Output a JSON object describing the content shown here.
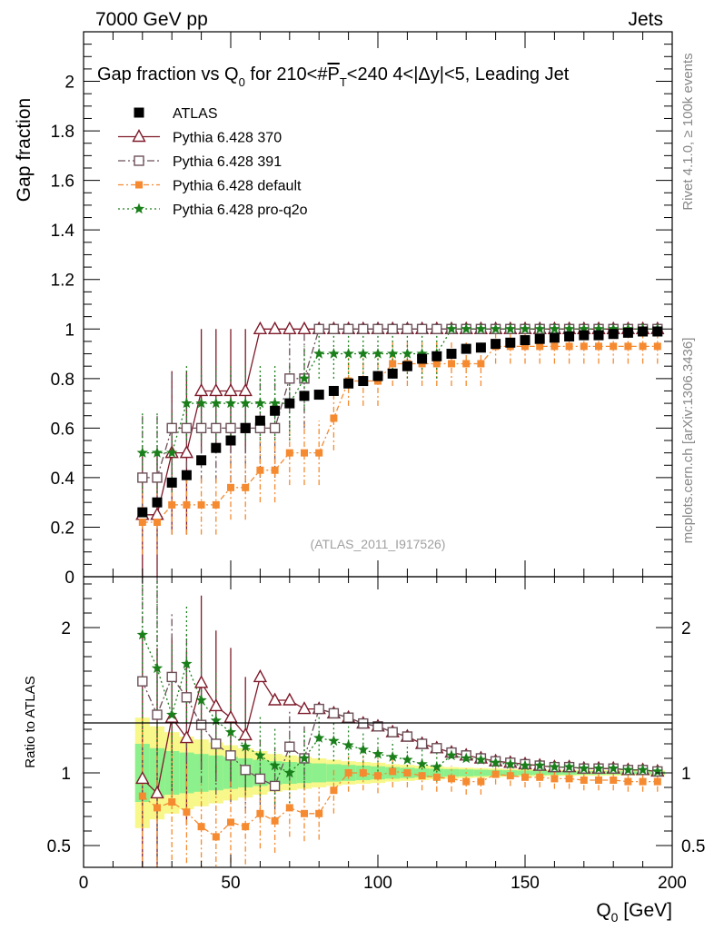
{
  "header": {
    "left": "7000 GeV pp",
    "right": "Jets"
  },
  "side_text": {
    "rivet": "Rivet 4.1.0, ≥ 100k events",
    "mcplots": "mcplots.cern.ch [arXiv:1306.3436]"
  },
  "watermark": "(ATLAS_2011_I917526)",
  "colors": {
    "atlas": "#000000",
    "p370": "#7f1a2a",
    "p391": "#6b5058",
    "pdefault": "#f58a30",
    "pq2o": "#1a7f1a",
    "band_inner": "#8cf08c",
    "band_outer": "#f7f78a"
  },
  "chart_data": {
    "type": "scatter",
    "title": "Gap fraction vs Q₀ for 210<#P̅T<240  4<|Δy|<5, Leading Jet",
    "title_parts": {
      "pre": "Gap fraction vs Q",
      "q_sub": "0",
      "mid": " for 210<#",
      "p": "P",
      "p_sub": "T",
      "post": "<240  4<|Δy|<5, Leading Jet"
    },
    "xlabel": "Q₀ [GeV]",
    "xlabel_parts": {
      "q": "Q",
      "sub": "0",
      "unit": " [GeV]"
    },
    "ylabel_main": "Gap fraction",
    "ylabel_ratio": "Ratio to ATLAS",
    "xlim": [
      0,
      200
    ],
    "ylim_main": [
      0,
      2.2
    ],
    "ylim_ratio": [
      0.35,
      2.35
    ],
    "x_ticks": [
      "0",
      "50",
      "100",
      "150",
      "200"
    ],
    "y_ticks_main": [
      "0",
      "0.2",
      "0.4",
      "0.6",
      "0.8",
      "1",
      "1.2",
      "1.4",
      "1.6",
      "1.8",
      "2"
    ],
    "y_ticks_ratio": [
      "0.5",
      "1",
      "2"
    ],
    "legend": [
      "ATLAS",
      "Pythia 6.428 370",
      "Pythia 6.428 391",
      "Pythia 6.428 default",
      "Pythia 6.428 pro-q2o"
    ],
    "x": [
      20,
      25,
      30,
      35,
      40,
      45,
      50,
      55,
      60,
      65,
      70,
      75,
      80,
      85,
      90,
      95,
      100,
      105,
      110,
      115,
      120,
      125,
      130,
      135,
      140,
      145,
      150,
      155,
      160,
      165,
      170,
      175,
      180,
      185,
      190,
      195
    ],
    "atlas": {
      "y": [
        0.26,
        0.3,
        0.38,
        0.41,
        0.47,
        0.52,
        0.55,
        0.6,
        0.63,
        0.67,
        0.7,
        0.73,
        0.735,
        0.75,
        0.78,
        0.79,
        0.81,
        0.82,
        0.85,
        0.88,
        0.89,
        0.9,
        0.92,
        0.925,
        0.94,
        0.945,
        0.955,
        0.96,
        0.965,
        0.97,
        0.975,
        0.975,
        0.98,
        0.985,
        0.99,
        0.99
      ],
      "band_inner": [
        0.2,
        0.17,
        0.15,
        0.14,
        0.13,
        0.12,
        0.11,
        0.1,
        0.09,
        0.08,
        0.075,
        0.07,
        0.065,
        0.06,
        0.055,
        0.05,
        0.045,
        0.04,
        0.035,
        0.03,
        0.028,
        0.026,
        0.024,
        0.022,
        0.02,
        0.018,
        0.016,
        0.015,
        0.014,
        0.013,
        0.012,
        0.012,
        0.011,
        0.011,
        0.01,
        0.01
      ],
      "band_outer": [
        0.38,
        0.32,
        0.28,
        0.25,
        0.23,
        0.21,
        0.19,
        0.17,
        0.15,
        0.13,
        0.12,
        0.11,
        0.1,
        0.09,
        0.08,
        0.075,
        0.07,
        0.06,
        0.055,
        0.05,
        0.045,
        0.04,
        0.036,
        0.033,
        0.03,
        0.027,
        0.025,
        0.023,
        0.022,
        0.021,
        0.02,
        0.02,
        0.019,
        0.018,
        0.017,
        0.017
      ]
    },
    "series": [
      {
        "name": "Pythia 6.428 370",
        "key": "p370",
        "marker": "triangle",
        "dash": "",
        "y": [
          0.25,
          0.25,
          0.5,
          0.5,
          0.75,
          0.75,
          0.75,
          0.75,
          1,
          1,
          1,
          1,
          1,
          1,
          1,
          1,
          1,
          1,
          1,
          1,
          1,
          1,
          1,
          1,
          1,
          1,
          1,
          1,
          1,
          1,
          1,
          1,
          1,
          1,
          1,
          1
        ],
        "err": [
          0.25,
          0.25,
          0.33,
          0.33,
          0.25,
          0.25,
          0.25,
          0.25,
          0.02,
          0.02,
          0.02,
          0.02,
          0.02,
          0.02,
          0.02,
          0.02,
          0.02,
          0.02,
          0.02,
          0.02,
          0.02,
          0.02,
          0.02,
          0.02,
          0.02,
          0.02,
          0.02,
          0.02,
          0.02,
          0.02,
          0.02,
          0.02,
          0.02,
          0.02,
          0.02,
          0.02
        ],
        "ratio": [
          0.96,
          0.86,
          1.38,
          1.24,
          1.62,
          1.46,
          1.38,
          1.26,
          1.66,
          1.5,
          1.5,
          1.44,
          1.44,
          1.41,
          1.38,
          1.34,
          1.32,
          1.28,
          1.25,
          1.2,
          1.17,
          1.14,
          1.12,
          1.1,
          1.08,
          1.07,
          1.06,
          1.05,
          1.04,
          1.04,
          1.03,
          1.03,
          1.03,
          1.02,
          1.02,
          1.01
        ],
        "ratio_err": [
          1.0,
          1.0,
          0.55,
          0.6,
          0.6,
          0.52,
          0.48,
          0.4,
          0.02,
          0.02,
          0.02,
          0.02,
          0.02,
          0.02,
          0.02,
          0.02,
          0.02,
          0.02,
          0.02,
          0.02,
          0.02,
          0.02,
          0.02,
          0.02,
          0.02,
          0.02,
          0.02,
          0.02,
          0.02,
          0.02,
          0.02,
          0.02,
          0.02,
          0.02,
          0.02,
          0.02
        ]
      },
      {
        "name": "Pythia 6.428 391",
        "key": "p391",
        "marker": "square_open",
        "dash": "8,3,2,3",
        "y": [
          0.4,
          0.4,
          0.6,
          0.6,
          0.6,
          0.6,
          0.6,
          0.6,
          0.6,
          0.6,
          0.8,
          0.8,
          1,
          1,
          1,
          1,
          1,
          1,
          1,
          1,
          1,
          1,
          1,
          1,
          1,
          1,
          1,
          1,
          1,
          1,
          1,
          1,
          1,
          1,
          1,
          1
        ],
        "err": [
          0.25,
          0.25,
          0.22,
          0.22,
          0.22,
          0.22,
          0.22,
          0.22,
          0.2,
          0.2,
          0.2,
          0.2,
          0.02,
          0.02,
          0.02,
          0.02,
          0.02,
          0.02,
          0.02,
          0.02,
          0.02,
          0.02,
          0.02,
          0.02,
          0.02,
          0.02,
          0.02,
          0.02,
          0.02,
          0.02,
          0.02,
          0.02,
          0.02,
          0.02,
          0.02,
          0.02
        ],
        "ratio": [
          1.63,
          1.4,
          1.66,
          1.52,
          1.33,
          1.2,
          1.12,
          1.02,
          0.96,
          0.91,
          1.18,
          1.1,
          1.44,
          1.41,
          1.38,
          1.34,
          1.32,
          1.28,
          1.25,
          1.2,
          1.17,
          1.14,
          1.12,
          1.1,
          1.08,
          1.07,
          1.06,
          1.05,
          1.04,
          1.04,
          1.03,
          1.03,
          1.03,
          1.02,
          1.02,
          1.01
        ],
        "ratio_err": [
          1.0,
          1.0,
          0.45,
          0.45,
          0.4,
          0.35,
          0.32,
          0.3,
          0.28,
          0.26,
          0.24,
          0.22,
          0.02,
          0.02,
          0.02,
          0.02,
          0.02,
          0.02,
          0.02,
          0.02,
          0.02,
          0.02,
          0.02,
          0.02,
          0.02,
          0.02,
          0.02,
          0.02,
          0.02,
          0.02,
          0.02,
          0.02,
          0.02,
          0.02,
          0.02,
          0.02
        ]
      },
      {
        "name": "Pythia 6.428 default",
        "key": "pdefault",
        "marker": "square_filled",
        "dash": "6,3,2,3",
        "y": [
          0.22,
          0.22,
          0.29,
          0.29,
          0.29,
          0.29,
          0.36,
          0.36,
          0.43,
          0.43,
          0.5,
          0.5,
          0.5,
          0.64,
          0.79,
          0.79,
          0.79,
          0.86,
          0.86,
          0.86,
          0.86,
          0.86,
          0.86,
          0.86,
          0.93,
          0.93,
          0.93,
          0.93,
          0.93,
          0.93,
          0.93,
          0.93,
          0.93,
          0.93,
          0.93,
          0.93
        ],
        "err": [
          0.13,
          0.13,
          0.12,
          0.12,
          0.12,
          0.12,
          0.13,
          0.13,
          0.13,
          0.13,
          0.13,
          0.13,
          0.13,
          0.13,
          0.1,
          0.1,
          0.1,
          0.09,
          0.09,
          0.09,
          0.09,
          0.09,
          0.09,
          0.09,
          0.07,
          0.07,
          0.07,
          0.07,
          0.07,
          0.07,
          0.07,
          0.07,
          0.07,
          0.07,
          0.07,
          0.07
        ],
        "ratio": [
          0.84,
          0.76,
          0.8,
          0.73,
          0.63,
          0.56,
          0.66,
          0.63,
          0.72,
          0.67,
          0.76,
          0.72,
          0.72,
          0.88,
          1.0,
          1.0,
          0.98,
          1.01,
          1.0,
          0.98,
          0.97,
          0.96,
          0.94,
          0.94,
          0.99,
          0.98,
          0.97,
          0.97,
          0.96,
          0.96,
          0.95,
          0.95,
          0.95,
          0.94,
          0.94,
          0.94
        ],
        "ratio_err": [
          0.55,
          0.5,
          0.4,
          0.35,
          0.3,
          0.28,
          0.28,
          0.26,
          0.24,
          0.22,
          0.2,
          0.19,
          0.18,
          0.16,
          0.13,
          0.12,
          0.12,
          0.11,
          0.1,
          0.1,
          0.1,
          0.09,
          0.09,
          0.09,
          0.07,
          0.07,
          0.07,
          0.07,
          0.07,
          0.07,
          0.07,
          0.07,
          0.07,
          0.07,
          0.07,
          0.07
        ]
      },
      {
        "name": "Pythia 6.428 pro-q2o",
        "key": "pq2o",
        "marker": "star",
        "dash": "2,3",
        "y": [
          0.5,
          0.5,
          0.5,
          0.7,
          0.7,
          0.7,
          0.7,
          0.7,
          0.7,
          0.7,
          0.7,
          0.8,
          0.9,
          0.9,
          0.9,
          0.9,
          0.9,
          0.9,
          0.9,
          0.9,
          0.9,
          1,
          1,
          1,
          1,
          1,
          1,
          1,
          1,
          1,
          1,
          1,
          1,
          1,
          1,
          1
        ],
        "err": [
          0.16,
          0.16,
          0.16,
          0.15,
          0.15,
          0.15,
          0.15,
          0.15,
          0.15,
          0.15,
          0.15,
          0.13,
          0.1,
          0.1,
          0.1,
          0.1,
          0.1,
          0.1,
          0.1,
          0.1,
          0.1,
          0.02,
          0.02,
          0.02,
          0.02,
          0.02,
          0.02,
          0.02,
          0.02,
          0.02,
          0.02,
          0.02,
          0.02,
          0.02,
          0.02,
          0.02
        ],
        "ratio": [
          1.95,
          1.72,
          1.4,
          1.75,
          1.5,
          1.36,
          1.28,
          1.18,
          1.12,
          1.05,
          1.0,
          1.1,
          1.24,
          1.22,
          1.19,
          1.16,
          1.13,
          1.11,
          1.09,
          1.06,
          1.04,
          1.12,
          1.1,
          1.09,
          1.07,
          1.06,
          1.05,
          1.05,
          1.04,
          1.04,
          1.03,
          1.03,
          1.03,
          1.02,
          1.02,
          1.01
        ],
        "ratio_err": [
          0.7,
          0.6,
          0.5,
          0.4,
          0.38,
          0.34,
          0.32,
          0.3,
          0.28,
          0.26,
          0.24,
          0.2,
          0.15,
          0.14,
          0.13,
          0.12,
          0.12,
          0.11,
          0.11,
          0.1,
          0.1,
          0.02,
          0.02,
          0.02,
          0.02,
          0.02,
          0.02,
          0.02,
          0.02,
          0.02,
          0.02,
          0.02,
          0.02,
          0.02,
          0.02,
          0.02
        ]
      }
    ]
  }
}
